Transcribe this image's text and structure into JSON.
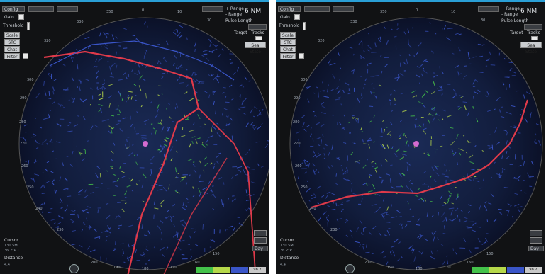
{
  "controls": {
    "config": "Config",
    "gain": "Gain",
    "threshold": "Threshold",
    "scale": "Scale",
    "stc": "STC",
    "chat": "Chat",
    "filter": "Filter",
    "plus_range": "+ Range",
    "minus_range": "- Range",
    "pulse_length": "Pulse Length",
    "target": "Target",
    "tracks": "Tracks",
    "range_value": "6 NM",
    "sea_state": "Sea State"
  },
  "bottom_left": {
    "cursor": "Cursor",
    "cursor_value_1": "130.5M",
    "cursor_value_2": "36.2°P T",
    "distance": "Distance",
    "distance_value": "4.4"
  },
  "bottom_right": {
    "display_mode": "Day",
    "value": "98.2"
  },
  "bearing_labels": [
    "350",
    "0",
    "10",
    "320",
    "330",
    "30",
    "300",
    "290",
    "280",
    "270",
    "260",
    "250",
    "240",
    "230",
    "200",
    "190",
    "180",
    "170",
    "160",
    "150"
  ],
  "legend": {
    "colors": [
      "#44c24a",
      "#b6d84a",
      "#3a55c8",
      "#c8c8c8"
    ]
  },
  "colors": {
    "background": "#111214",
    "accent": "#2a9fd6",
    "track": "#e03a4a"
  }
}
